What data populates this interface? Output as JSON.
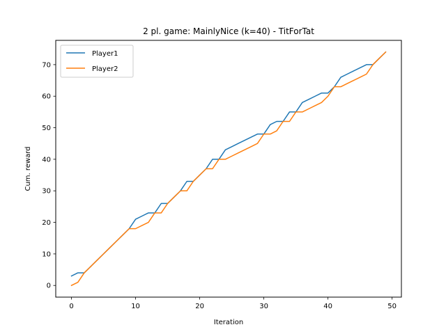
{
  "chart_data": {
    "type": "line",
    "title": "2 pl. game: MainlyNice (k=40) - TitForTat",
    "xlabel": "Iteration",
    "ylabel": "Cum. reward",
    "xlim": [
      -2.45,
      51.45
    ],
    "ylim": [
      -3.7,
      77.7
    ],
    "xticks": [
      0,
      10,
      20,
      30,
      40,
      50
    ],
    "yticks": [
      0,
      10,
      20,
      30,
      40,
      50,
      60,
      70
    ],
    "grid": false,
    "legend": "upper left",
    "x": [
      0,
      1,
      2,
      3,
      4,
      5,
      6,
      7,
      8,
      9,
      10,
      11,
      12,
      13,
      14,
      15,
      16,
      17,
      18,
      19,
      20,
      21,
      22,
      23,
      24,
      25,
      26,
      27,
      28,
      29,
      30,
      31,
      32,
      33,
      34,
      35,
      36,
      37,
      38,
      39,
      40,
      41,
      42,
      43,
      44,
      45,
      46,
      47,
      48,
      49
    ],
    "series": [
      {
        "name": "Player1",
        "color": "#1f77b4",
        "values": [
          3,
          4,
          4,
          6,
          8,
          10,
          12,
          14,
          16,
          18,
          21,
          22,
          23,
          23,
          26,
          26,
          28,
          30,
          33,
          33,
          35,
          37,
          40,
          40,
          43,
          44,
          45,
          46,
          47,
          48,
          48,
          51,
          52,
          52,
          55,
          55,
          58,
          59,
          60,
          61,
          61,
          63,
          66,
          67,
          68,
          69,
          70,
          70,
          72,
          74
        ]
      },
      {
        "name": "Player2",
        "color": "#ff7f0e",
        "values": [
          0,
          1,
          4,
          6,
          8,
          10,
          12,
          14,
          16,
          18,
          18,
          19,
          20,
          23,
          23,
          26,
          28,
          30,
          30,
          33,
          35,
          37,
          37,
          40,
          40,
          41,
          42,
          43,
          44,
          45,
          48,
          48,
          49,
          52,
          52,
          55,
          55,
          56,
          57,
          58,
          60,
          63,
          63,
          64,
          65,
          66,
          67,
          70,
          72,
          74
        ]
      }
    ]
  }
}
